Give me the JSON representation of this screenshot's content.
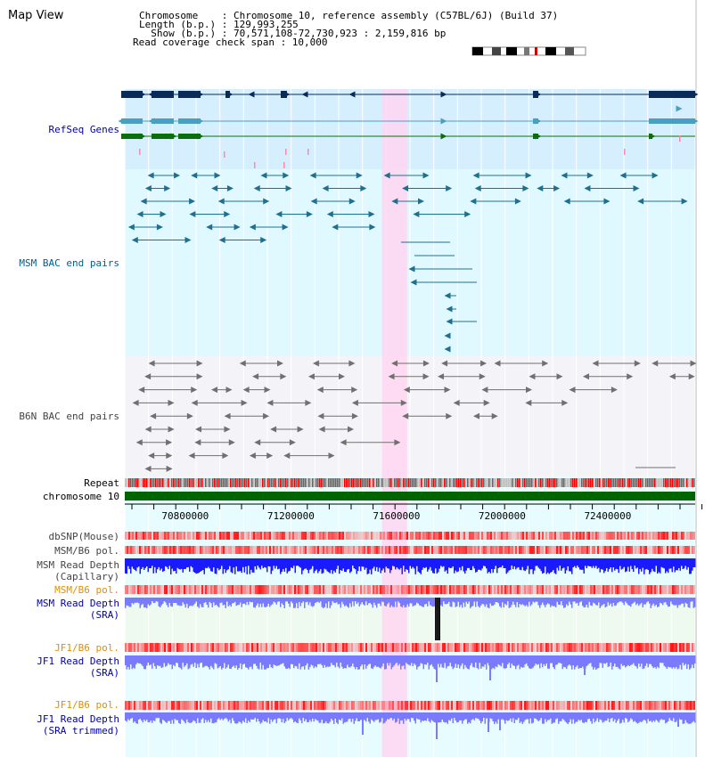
{
  "header": {
    "map_title": "Map View",
    "info_lines": [
      "Chromosome    : Chromosome 10, reference assembly (C57BL/6J) (Build 37)",
      "Length (b.p.) : 129,993,255",
      "  Show (b.p.) : 70,571,108-72,730,923 : 2,159,816 bp",
      "Read coverage check span : 10,000"
    ]
  },
  "tracks": [
    {
      "id": "refseq",
      "label": "RefSeq Genes",
      "color": "#0000aa"
    },
    {
      "id": "msm-bac",
      "label": "MSM BAC end pairs",
      "color": "#005f8a"
    },
    {
      "id": "b6n-bac",
      "label": "B6N BAC end pairs",
      "color": "#444444"
    },
    {
      "id": "repeat",
      "label": "Repeat",
      "color": "#000000"
    },
    {
      "id": "chromosome",
      "label": "chromosome 10",
      "color": "#000000"
    },
    {
      "id": "dbsnp",
      "label": "dbSNP(Mouse)",
      "color": "#444444"
    },
    {
      "id": "msm-b6-pol-1",
      "label": "MSM/B6 pol.",
      "color": "#444444"
    },
    {
      "id": "msm-depth-cap",
      "label": "MSM Read Depth\n(Capillary)",
      "color": "#444444"
    },
    {
      "id": "msm-b6-pol-2",
      "label": "MSM/B6 pol.",
      "color": "#e09000"
    },
    {
      "id": "msm-depth-sra",
      "label": "MSM Read Depth\n(SRA)",
      "color": "#0000aa"
    },
    {
      "id": "jf1-b6-pol-1",
      "label": "JF1/B6 pol.",
      "color": "#e09000"
    },
    {
      "id": "jf1-depth-sra",
      "label": "JF1 Read Depth\n(SRA)",
      "color": "#0000aa"
    },
    {
      "id": "jf1-b6-pol-2",
      "label": "JF1/B6 pol.",
      "color": "#e09000"
    },
    {
      "id": "jf1-depth-trim",
      "label": "JF1 Read Depth\n(SRA trimmed)",
      "color": "#0000aa"
    }
  ],
  "axis": {
    "range": [
      70571108,
      72730923
    ],
    "tick_labels": [
      "70800000",
      "71200000",
      "71600000",
      "72000000",
      "72400000"
    ]
  },
  "highlight": {
    "start": 71545000,
    "end": 71640000,
    "color": "#ffd6f2"
  },
  "colors": {
    "refseq_bg": "#d6efff",
    "msm_bg": "#e0f8ff",
    "b6n_bg": "#f4f4f8",
    "sra_bg": "#eefaf0",
    "cyan_bg": "#e6fcff",
    "chromosome": "#006400",
    "depth_cap": "#1a1aff",
    "depth_sra": "#7a7aff",
    "pol_red": "#ff2020",
    "gene_navy": "#0a2a5a",
    "gene_teal": "#4a9ec0",
    "gene_green": "#0a6e0a",
    "bac_teal": "#1f6f8f",
    "bac_grey": "#707070"
  }
}
